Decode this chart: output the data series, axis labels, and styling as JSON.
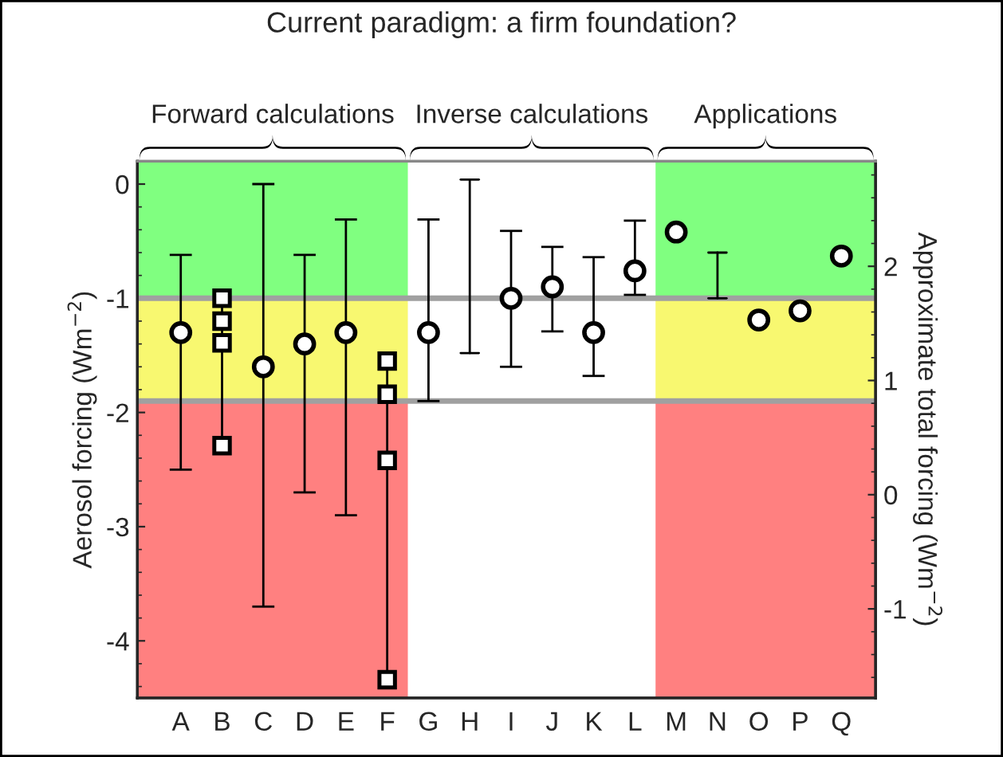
{
  "chart_data": {
    "type": "scatter",
    "title": "Current paradigm: a firm foundation?",
    "ylabel": "Aerosol forcing (Wm$^{−2}$)",
    "y2label": "Approximate total forcing (Wm$^{−2}$)",
    "categories": [
      "A",
      "B",
      "C",
      "D",
      "E",
      "F",
      "G",
      "H",
      "I",
      "J",
      "K",
      "L",
      "M",
      "N",
      "O",
      "P",
      "Q"
    ],
    "series": [
      {
        "marker": "circle",
        "color": "#000000",
        "values": [
          -1.3,
          null,
          -1.6,
          -1.4,
          -1.3,
          null,
          -1.3,
          null,
          -1.0,
          -0.9,
          -1.3,
          -0.76,
          -0.42,
          null,
          -1.19,
          -1.11,
          -0.63
        ],
        "errors": [
          [
            -2.5,
            -0.62
          ],
          null,
          [
            -3.7,
            0.0
          ],
          [
            -2.7,
            -0.62
          ],
          [
            -2.9,
            -0.31
          ],
          null,
          [
            -1.9,
            -0.31
          ],
          null,
          [
            -1.6,
            -0.41
          ],
          [
            -1.29,
            -0.55
          ],
          [
            -1.68,
            -0.64
          ],
          [
            -0.97,
            -0.32
          ],
          null,
          null,
          null,
          null,
          null
        ]
      },
      {
        "type": "line",
        "color": "#000000",
        "x": [
          "H",
          "H"
        ],
        "values": [
          0.04,
          -1.48
        ]
      },
      {
        "type": "line",
        "color": "#000000",
        "x": [
          "N",
          "N"
        ],
        "values": [
          -0.6,
          -1.0
        ]
      },
      {
        "type": "line",
        "marker": "square",
        "color": "#000000",
        "x": [
          "B",
          "B",
          "B",
          "B"
        ],
        "values": [
          -1.0,
          -1.2,
          -1.39,
          -2.29
        ]
      },
      {
        "type": "line",
        "marker": "square",
        "color": "#000000",
        "x": [
          "F",
          "F",
          "F",
          "F"
        ],
        "values": [
          -1.55,
          -1.84,
          -2.42,
          -4.34
        ]
      }
    ],
    "ylim": [
      -4.5,
      0.2
    ],
    "yticks": [
      -4,
      -3,
      -2,
      -1,
      0
    ],
    "y2lim": [
      -1.78,
      2.92
    ],
    "y2ticks": [
      -1,
      0,
      1,
      2
    ],
    "bands": [
      {
        "axis": "y",
        "from": -1.0,
        "to": 0.2,
        "color": "#80ff80"
      },
      {
        "axis": "y",
        "from": -1.9,
        "to": -1.0,
        "color": "#f8f870"
      },
      {
        "axis": "y",
        "from": -4.5,
        "to": -1.9,
        "color": "#ff8080"
      },
      {
        "axis": "x",
        "from": "G",
        "to": "L",
        "color": "#ffffff"
      }
    ],
    "ref_lines": [
      {
        "axis": "y",
        "value": -1.0,
        "color": "#a0a0a0"
      },
      {
        "axis": "y",
        "value": -1.9,
        "color": "#a0a0a0"
      }
    ],
    "annotations": [
      "Forward calculations",
      "Inverse calculations",
      "Applications"
    ],
    "grid": false,
    "legend": false
  }
}
